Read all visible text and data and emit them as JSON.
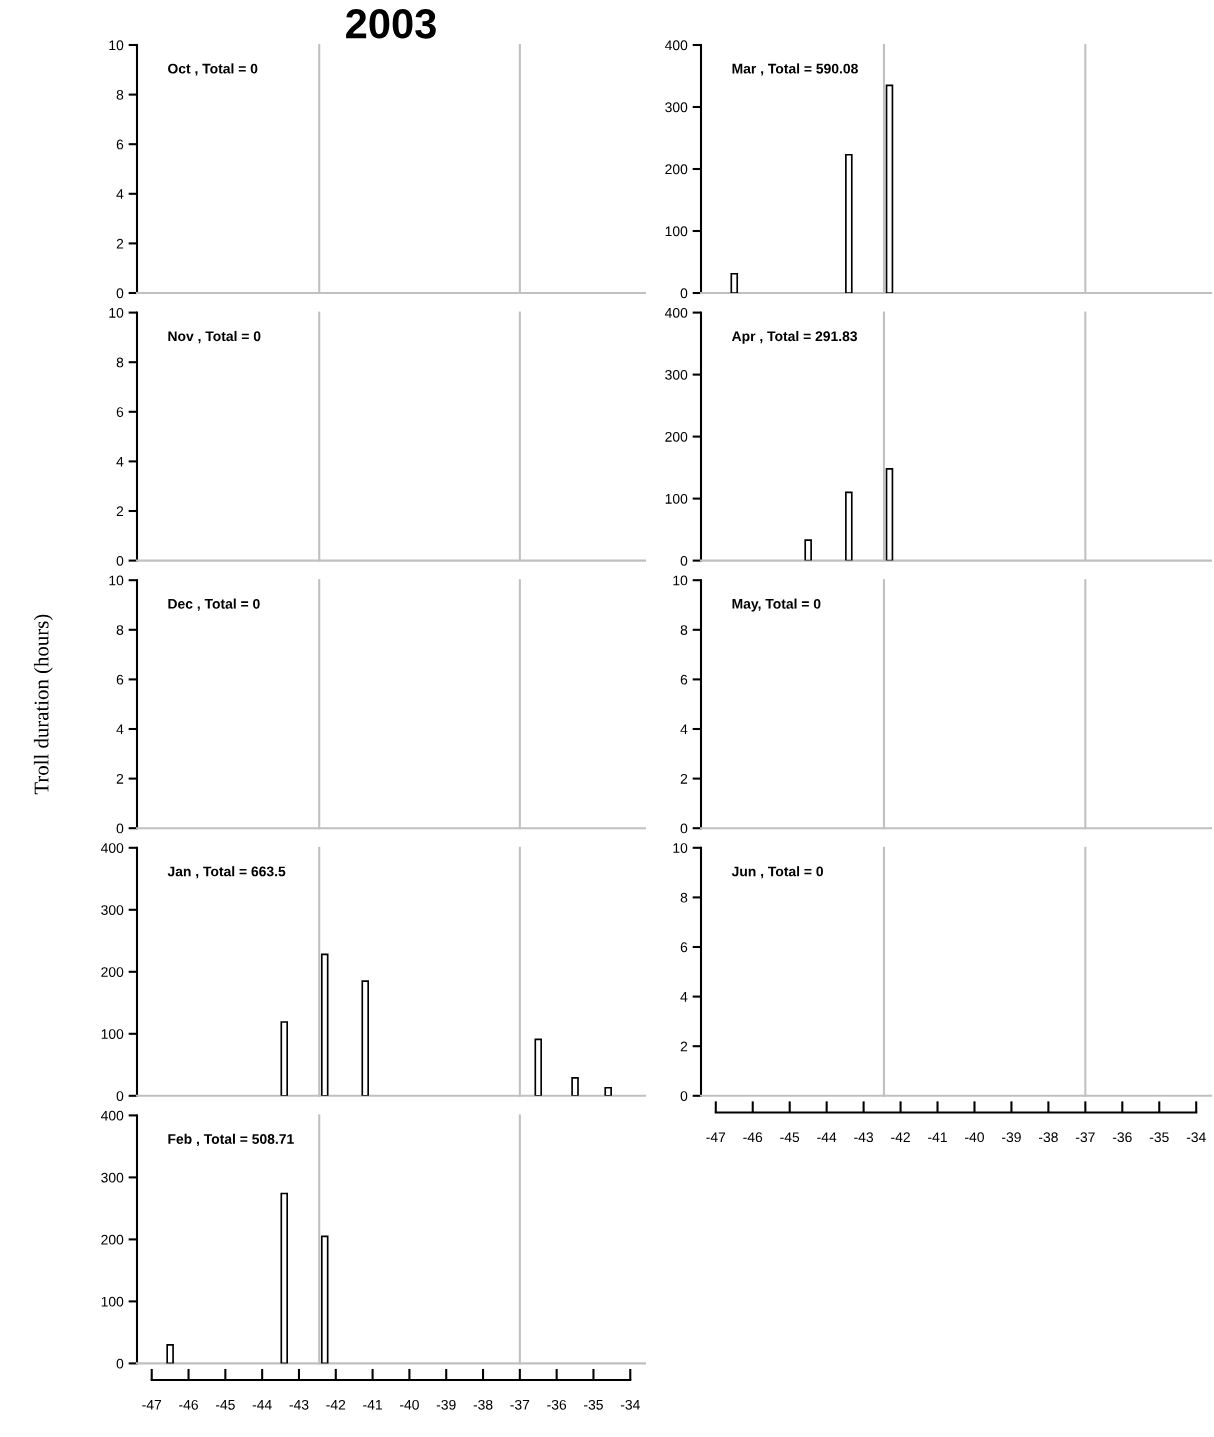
{
  "chart_data": [
    {
      "type": "bar",
      "title": "2003",
      "annotations": [
        "Oct , Total = 0"
      ],
      "color": "#ffffff",
      "xlim": [
        -47.4,
        -33.6
      ],
      "ylim": [
        0,
        10
      ],
      "yticks": [
        0,
        2,
        4,
        6,
        8,
        10
      ],
      "tick_labels": "y",
      "grid": false,
      "legend": false,
      "ref_lines": [
        {
          "axis": "x",
          "value": -42.45,
          "color": "#c0c0c0"
        },
        {
          "axis": "x",
          "value": -37,
          "color": "#c0c0c0"
        }
      ]
    },
    {
      "type": "bar",
      "annotations": [
        "Nov , Total = 0"
      ],
      "color": "#ffffff",
      "xlim": [
        -47.4,
        -33.6
      ],
      "ylim": [
        0,
        10
      ],
      "yticks": [
        0,
        2,
        4,
        6,
        8,
        10
      ],
      "tick_labels": "y",
      "grid": false,
      "legend": false,
      "ref_lines": [
        {
          "axis": "x",
          "value": -42.45,
          "color": "#c0c0c0"
        },
        {
          "axis": "x",
          "value": -37,
          "color": "#c0c0c0"
        }
      ]
    },
    {
      "type": "bar",
      "ylabel": "Troll duration (hours)",
      "annotations": [
        "Dec , Total = 0"
      ],
      "color": "#ffffff",
      "xlim": [
        -47.4,
        -33.6
      ],
      "ylim": [
        0,
        10
      ],
      "yticks": [
        0,
        2,
        4,
        6,
        8,
        10
      ],
      "tick_labels": "y",
      "grid": false,
      "legend": false,
      "ref_lines": [
        {
          "axis": "x",
          "value": -42.45,
          "color": "#c0c0c0"
        },
        {
          "axis": "x",
          "value": -37,
          "color": "#c0c0c0"
        }
      ]
    },
    {
      "type": "bar",
      "annotations": [
        "Jan , Total = 663.5"
      ],
      "x": [
        -43.4,
        -42.3,
        -41.2,
        -36.5,
        -35.5,
        -34.6
      ],
      "values": [
        119,
        228,
        185,
        91,
        29,
        13
      ],
      "color": "#ffffff",
      "xlim": [
        -47.4,
        -33.6
      ],
      "ylim": [
        0,
        400
      ],
      "yticks": [
        0,
        100,
        200,
        300,
        400
      ],
      "tick_labels": "y",
      "grid": false,
      "legend": false,
      "ref_lines": [
        {
          "axis": "x",
          "value": -42.45,
          "color": "#c0c0c0"
        },
        {
          "axis": "x",
          "value": -37,
          "color": "#c0c0c0"
        }
      ]
    },
    {
      "type": "bar",
      "annotations": [
        "Feb , Total = 508.71"
      ],
      "x": [
        -46.5,
        -43.4,
        -42.3
      ],
      "values": [
        30,
        274,
        205
      ],
      "color": "#ffffff",
      "xlim": [
        -47.4,
        -33.6
      ],
      "xticks": [
        -47,
        -46,
        -45,
        -44,
        -43,
        -42,
        -41,
        -40,
        -39,
        -38,
        -37,
        -36,
        -35,
        -34
      ],
      "ylim": [
        0,
        400
      ],
      "yticks": [
        0,
        100,
        200,
        300,
        400
      ],
      "grid": false,
      "legend": false,
      "ref_lines": [
        {
          "axis": "x",
          "value": -42.45,
          "color": "#c0c0c0"
        },
        {
          "axis": "x",
          "value": -37,
          "color": "#c0c0c0"
        }
      ]
    },
    {
      "type": "bar",
      "annotations": [
        "Mar , Total = 590.08"
      ],
      "x": [
        -46.5,
        -43.4,
        -42.3
      ],
      "values": [
        31,
        223,
        335
      ],
      "color": "#ffffff",
      "xlim": [
        -47.4,
        -33.6
      ],
      "ylim": [
        0,
        400
      ],
      "yticks": [
        0,
        100,
        200,
        300,
        400
      ],
      "tick_labels": "y",
      "grid": false,
      "legend": false,
      "ref_lines": [
        {
          "axis": "x",
          "value": -42.45,
          "color": "#c0c0c0"
        },
        {
          "axis": "x",
          "value": -37,
          "color": "#c0c0c0"
        }
      ]
    },
    {
      "type": "bar",
      "annotations": [
        "Apr , Total = 291.83"
      ],
      "x": [
        -44.5,
        -43.4,
        -42.3
      ],
      "values": [
        33,
        110,
        148
      ],
      "color": "#ffffff",
      "xlim": [
        -47.4,
        -33.6
      ],
      "ylim": [
        0,
        400
      ],
      "yticks": [
        0,
        100,
        200,
        300,
        400
      ],
      "tick_labels": "y",
      "grid": false,
      "legend": false,
      "ref_lines": [
        {
          "axis": "x",
          "value": -42.45,
          "color": "#c0c0c0"
        },
        {
          "axis": "x",
          "value": -37,
          "color": "#c0c0c0"
        }
      ]
    },
    {
      "type": "bar",
      "annotations": [
        "May, Total = 0"
      ],
      "color": "#ffffff",
      "xlim": [
        -47.4,
        -33.6
      ],
      "ylim": [
        0,
        10
      ],
      "yticks": [
        0,
        2,
        4,
        6,
        8,
        10
      ],
      "tick_labels": "y",
      "grid": false,
      "legend": false,
      "ref_lines": [
        {
          "axis": "x",
          "value": -42.45,
          "color": "#c0c0c0"
        },
        {
          "axis": "x",
          "value": -37,
          "color": "#c0c0c0"
        }
      ]
    },
    {
      "type": "bar",
      "annotations": [
        "Jun , Total = 0"
      ],
      "color": "#ffffff",
      "xlim": [
        -47.4,
        -33.6
      ],
      "xticks": [
        -47,
        -46,
        -45,
        -44,
        -43,
        -42,
        -41,
        -40,
        -39,
        -38,
        -37,
        -36,
        -35,
        -34
      ],
      "ylim": [
        0,
        10
      ],
      "yticks": [
        0,
        2,
        4,
        6,
        8,
        10
      ],
      "grid": false,
      "legend": false,
      "ref_lines": [
        {
          "axis": "x",
          "value": -42.45,
          "color": "#c0c0c0"
        },
        {
          "axis": "x",
          "value": -37,
          "color": "#c0c0c0"
        }
      ]
    }
  ]
}
